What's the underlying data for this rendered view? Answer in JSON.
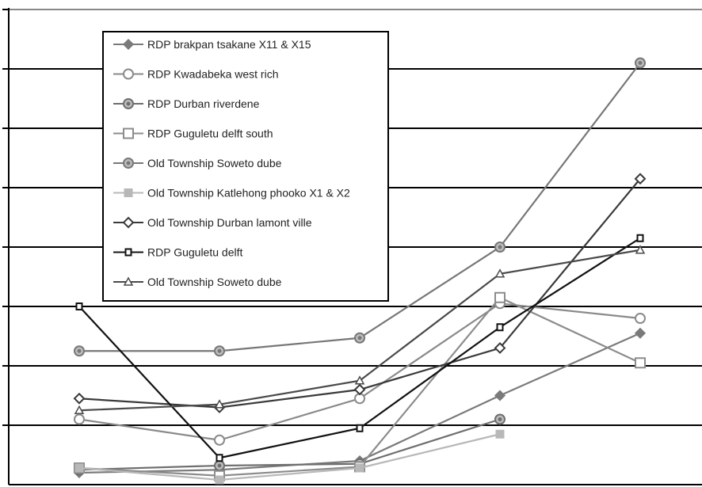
{
  "chart_data": {
    "type": "line",
    "title": "",
    "xlabel": "",
    "ylabel": "",
    "x": [
      1,
      2,
      3,
      4,
      5
    ],
    "ylim": [
      0,
      8
    ],
    "grid": true,
    "legend_placement": "top-left",
    "series": [
      {
        "name": "RDP brakpan tsakane X11 & X15",
        "marker": "diamond-filled",
        "color": "#7a7a7a",
        "values": [
          0.2,
          0.25,
          0.4,
          1.5,
          2.55
        ]
      },
      {
        "name": "RDP Kwadabeka  west rich",
        "marker": "circle-open",
        "color": "#8a8a8a",
        "values": [
          1.1,
          0.75,
          1.45,
          3.05,
          2.8
        ]
      },
      {
        "name": "RDP Durban riverdene",
        "marker": "circle-filled",
        "color": "#6e6e6e",
        "values": [
          0.25,
          0.32,
          0.35,
          1.1,
          null
        ]
      },
      {
        "name": "RDP Guguletu delft south",
        "marker": "square-open",
        "color": "#8c8c8c",
        "values": [
          0.28,
          0.15,
          0.3,
          3.15,
          2.05
        ]
      },
      {
        "name": "Old Township Soweto dube",
        "marker": "circle-filled",
        "color": "#777777",
        "values": [
          2.25,
          2.25,
          2.47,
          4.0,
          7.1
        ]
      },
      {
        "name": "Old Township Katlehong phooko X1 & X2",
        "marker": "square-filled",
        "color": "#b8b8b8",
        "values": [
          0.28,
          0.08,
          0.28,
          0.85,
          null
        ]
      },
      {
        "name": "Old Township Durban lamont ville",
        "marker": "diamond-open",
        "color": "#3a3a3a",
        "values": [
          1.45,
          1.3,
          1.6,
          2.3,
          5.15
        ]
      },
      {
        "name": "RDP Guguletu delft",
        "marker": "square-open-black",
        "color": "#111111",
        "values": [
          3.0,
          0.45,
          0.95,
          2.65,
          4.15
        ]
      },
      {
        "name": "Old Township Soweto dube",
        "marker": "triangle-open",
        "color": "#4a4a4a",
        "values": [
          1.25,
          1.35,
          1.75,
          3.55,
          3.95
        ]
      }
    ]
  }
}
